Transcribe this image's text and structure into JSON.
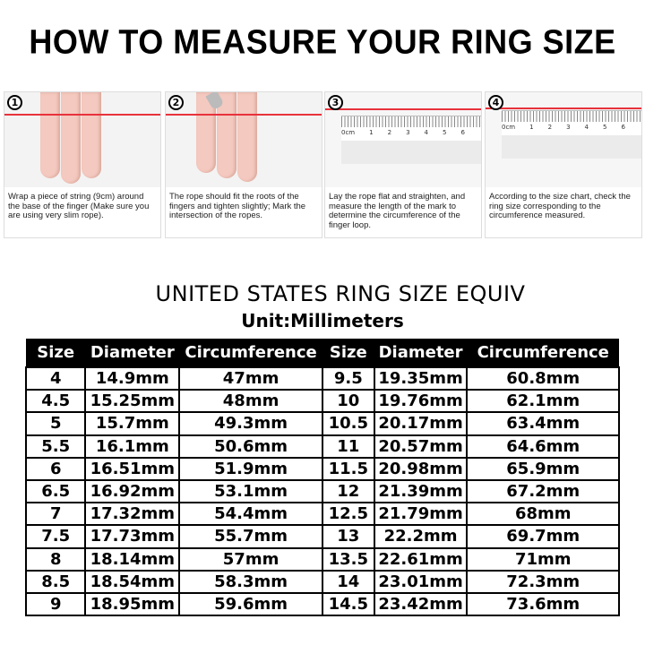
{
  "title": "HOW TO MEASURE YOUR RING SIZE",
  "steps": [
    {
      "number": "1",
      "text": "Wrap a piece of string (9cm) around the base of the finger (Make sure you are using very slim rope)."
    },
    {
      "number": "2",
      "text": "The rope should fit the roots of the fingers and tighten slightly; Mark the intersection of the ropes."
    },
    {
      "number": "3",
      "text": "Lay the rope flat and straighten, and measure the length of the mark to determine the circumference of the finger loop."
    },
    {
      "number": "4",
      "text": "According to the size chart, check the ring size corresponding to the circumference measured."
    }
  ],
  "ruler_labels": [
    "0cm",
    "1",
    "2",
    "3",
    "4",
    "5",
    "6"
  ],
  "chart": {
    "title": "UNITED STATES RING SIZE EQUIV",
    "unit": "Unit:Millimeters",
    "headers": [
      "Size",
      "Diameter",
      "Circumference",
      "Size",
      "Diameter",
      "Circumference"
    ],
    "rows": [
      [
        "4",
        "14.9mm",
        "47mm",
        "9.5",
        "19.35mm",
        "60.8mm"
      ],
      [
        "4.5",
        "15.25mm",
        "48mm",
        "10",
        "19.76mm",
        "62.1mm"
      ],
      [
        "5",
        "15.7mm",
        "49.3mm",
        "10.5",
        "20.17mm",
        "63.4mm"
      ],
      [
        "5.5",
        "16.1mm",
        "50.6mm",
        "11",
        "20.57mm",
        "64.6mm"
      ],
      [
        "6",
        "16.51mm",
        "51.9mm",
        "11.5",
        "20.98mm",
        "65.9mm"
      ],
      [
        "6.5",
        "16.92mm",
        "53.1mm",
        "12",
        "21.39mm",
        "67.2mm"
      ],
      [
        "7",
        "17.32mm",
        "54.4mm",
        "12.5",
        "21.79mm",
        "68mm"
      ],
      [
        "7.5",
        "17.73mm",
        "55.7mm",
        "13",
        "22.2mm",
        "69.7mm"
      ],
      [
        "8",
        "18.14mm",
        "57mm",
        "13.5",
        "22.61mm",
        "71mm"
      ],
      [
        "8.5",
        "18.54mm",
        "58.3mm",
        "14",
        "23.01mm",
        "72.3mm"
      ],
      [
        "9",
        "18.95mm",
        "59.6mm",
        "14.5",
        "23.42mm",
        "73.6mm"
      ]
    ]
  },
  "colors": {
    "rope": "#e8323c",
    "header_bg": "#000000"
  }
}
